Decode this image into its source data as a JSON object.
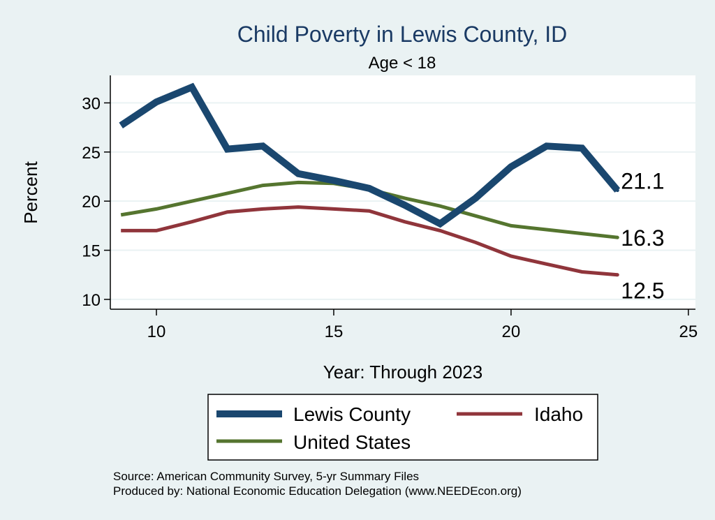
{
  "chart_data": {
    "type": "line",
    "title": "Child Poverty in Lewis County, ID",
    "subtitle": "Age < 18",
    "xlabel": "Year: Through 2023",
    "ylabel": "Percent",
    "xlim": [
      8.7,
      25.2
    ],
    "ylim": [
      9.0,
      32.8
    ],
    "xticks": [
      "10",
      "15",
      "20",
      "25"
    ],
    "yticks": [
      "10",
      "15",
      "20",
      "25",
      "30"
    ],
    "xtick_values": [
      10,
      15,
      20,
      25
    ],
    "ytick_values": [
      10,
      15,
      20,
      25,
      30
    ],
    "grid": true,
    "legend_position": "bottom",
    "x": [
      9,
      10,
      11,
      12,
      13,
      14,
      15,
      16,
      17,
      18,
      19,
      20,
      21,
      22,
      23
    ],
    "series": [
      {
        "name": "Lewis County",
        "color": "#1a476f",
        "values": [
          27.7,
          30.1,
          31.6,
          25.3,
          25.6,
          22.8,
          22.1,
          21.3,
          19.6,
          17.7,
          20.3,
          23.5,
          25.6,
          25.4,
          21.1
        ],
        "end_label": "21.1"
      },
      {
        "name": "Idaho",
        "color": "#90353b",
        "values": [
          17.0,
          17.0,
          17.9,
          18.9,
          19.2,
          19.4,
          19.2,
          19.0,
          17.9,
          17.0,
          15.8,
          14.4,
          13.6,
          12.8,
          12.5
        ],
        "end_label": "12.5"
      },
      {
        "name": "United States",
        "color": "#55752f",
        "values": [
          18.6,
          19.2,
          20.0,
          20.8,
          21.6,
          21.9,
          21.8,
          21.2,
          20.3,
          19.5,
          18.5,
          17.5,
          17.1,
          16.7,
          16.3
        ],
        "end_label": "16.3"
      }
    ],
    "notes": [
      "Source: American Community Survey, 5-yr Summary Files",
      "Produced by: National Economic Education Delegation (www.NEEDEcon.org)"
    ]
  }
}
